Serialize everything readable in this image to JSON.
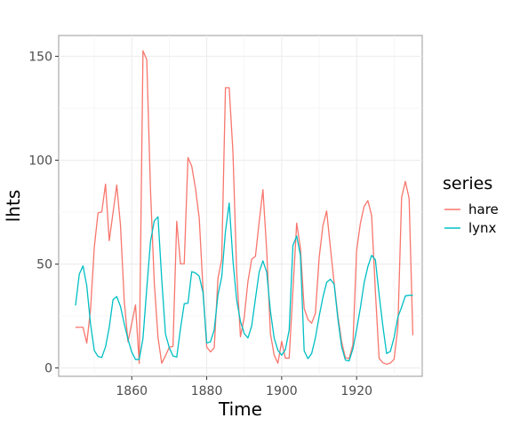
{
  "chart_data": {
    "type": "line",
    "title": "",
    "xlabel": "Time",
    "ylabel": "lhts",
    "xlim": [
      1840.5,
      1937.5
    ],
    "ylim": [
      -4,
      160
    ],
    "x_ticks": [
      1860,
      1880,
      1900,
      1920
    ],
    "y_ticks": [
      0,
      50,
      100,
      150
    ],
    "grid": true,
    "legend": {
      "title": "series",
      "position": "right"
    },
    "x": [
      1845,
      1846,
      1847,
      1848,
      1849,
      1850,
      1851,
      1852,
      1853,
      1854,
      1855,
      1856,
      1857,
      1858,
      1859,
      1860,
      1861,
      1862,
      1863,
      1864,
      1865,
      1866,
      1867,
      1868,
      1869,
      1870,
      1871,
      1872,
      1873,
      1874,
      1875,
      1876,
      1877,
      1878,
      1879,
      1880,
      1881,
      1882,
      1883,
      1884,
      1885,
      1886,
      1887,
      1888,
      1889,
      1890,
      1891,
      1892,
      1893,
      1894,
      1895,
      1896,
      1897,
      1898,
      1899,
      1900,
      1901,
      1902,
      1903,
      1904,
      1905,
      1906,
      1907,
      1908,
      1909,
      1910,
      1911,
      1912,
      1913,
      1914,
      1915,
      1916,
      1917,
      1918,
      1919,
      1920,
      1921,
      1922,
      1923,
      1924,
      1925,
      1926,
      1927,
      1928,
      1929,
      1930,
      1931,
      1932,
      1933,
      1934,
      1935
    ],
    "series": [
      {
        "name": "hare",
        "color": "#F8766D",
        "values": [
          19.58,
          19.6,
          19.61,
          11.99,
          28.04,
          58.0,
          74.6,
          75.09,
          88.48,
          61.28,
          74.67,
          88.06,
          68.51,
          32.19,
          12.64,
          21.49,
          30.35,
          2.18,
          152.65,
          148.36,
          85.81,
          41.41,
          14.75,
          2.28,
          5.91,
          9.95,
          10.44,
          70.64,
          50.12,
          50.13,
          101.25,
          97.12,
          86.51,
          72.17,
          38.32,
          10.11,
          7.74,
          9.67,
          43.12,
          52.21,
          134.85,
          134.86,
          103.79,
          46.1,
          15.03,
          24.2,
          41.65,
          52.34,
          53.78,
          70.4,
          85.81,
          56.69,
          16.59,
          6.16,
          2.3,
          12.82,
          4.72,
          4.73,
          37.22,
          69.72,
          57.78,
          28.68,
          23.37,
          21.54,
          26.34,
          53.1,
          68.48,
          75.58,
          57.92,
          40.97,
          24.95,
          12.59,
          4.97,
          4.5,
          11.21,
          56.6,
          69.63,
          77.74,
          80.53,
          73.38,
          36.93,
          4.64,
          2.54,
          1.8,
          2.39,
          4.23,
          19.52,
          82.11,
          89.76,
          81.66,
          15.76
        ]
      },
      {
        "name": "lynx",
        "color": "#00BFC4",
        "values": [
          30.09,
          45.15,
          49.15,
          39.52,
          21.23,
          8.42,
          5.56,
          5.08,
          10.17,
          19.6,
          32.91,
          34.38,
          29.59,
          21.3,
          13.69,
          7.65,
          4.08,
          4.09,
          14.33,
          38.22,
          60.78,
          70.77,
          72.77,
          42.68,
          16.39,
          9.83,
          5.8,
          5.26,
          18.91,
          30.95,
          31.18,
          46.34,
          45.77,
          44.15,
          36.33,
          12.03,
          12.6,
          18.34,
          35.14,
          43.77,
          65.69,
          79.35,
          51.65,
          32.59,
          22.45,
          16.61,
          14.45,
          20.18,
          33.37,
          46.22,
          51.54,
          46.14,
          27.34,
          14.37,
          8.48,
          6.15,
          8.93,
          18.24,
          59.01,
          63.55,
          54.24,
          8.27,
          4.5,
          6.97,
          14.5,
          24.9,
          33.97,
          41.2,
          42.73,
          40.31,
          23.58,
          10.18,
          3.8,
          3.39,
          9.16,
          18.52,
          28.94,
          40.97,
          48.8,
          54.21,
          52.07,
          35.3,
          20.16,
          6.96,
          8.0,
          14.71,
          24.49,
          29.26,
          34.68,
          35.0,
          35.0
        ]
      }
    ]
  }
}
